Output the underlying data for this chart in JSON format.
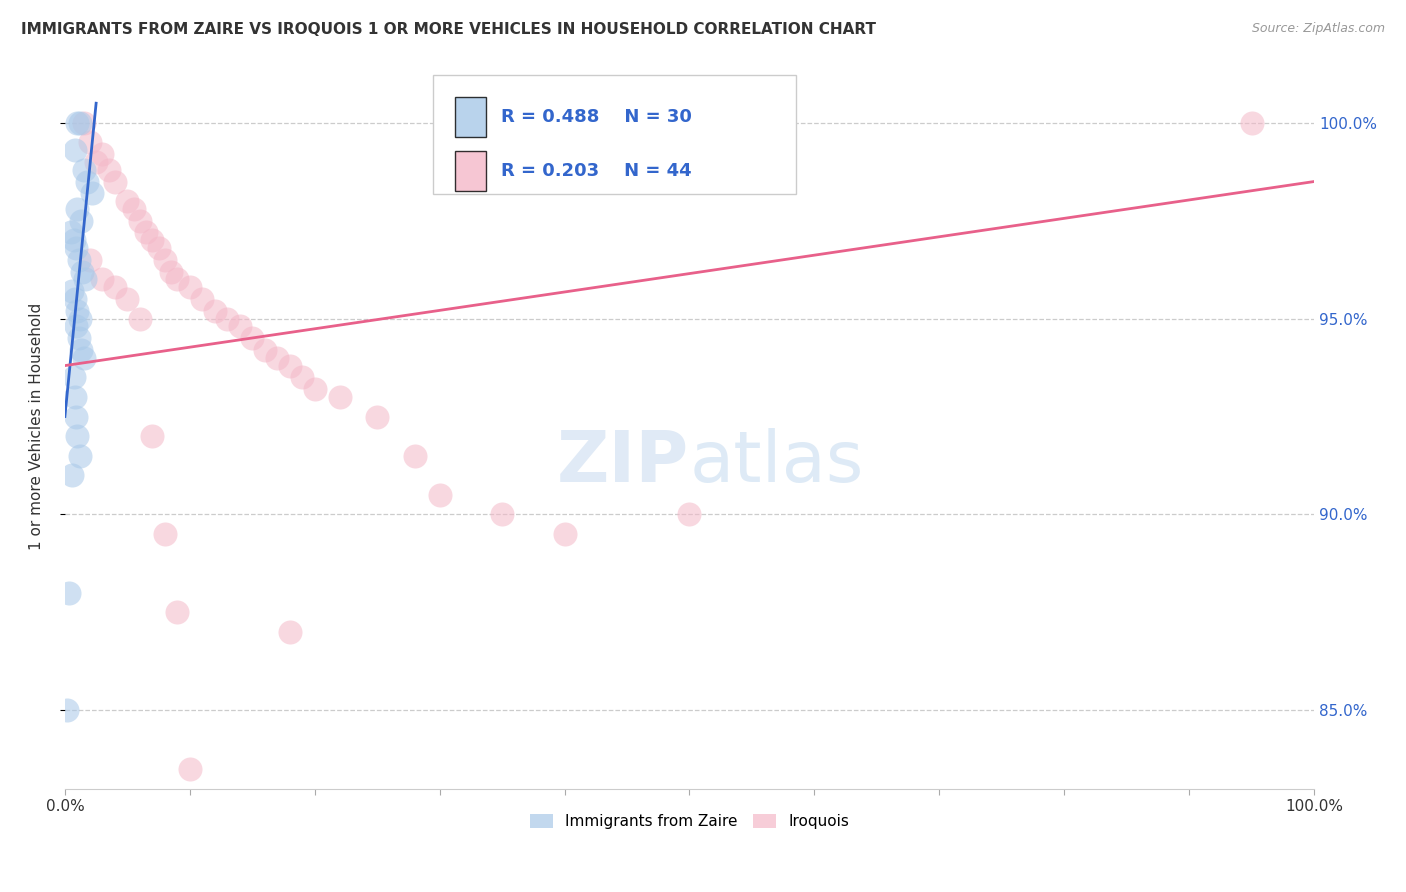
{
  "title": "IMMIGRANTS FROM ZAIRE VS IROQUOIS 1 OR MORE VEHICLES IN HOUSEHOLD CORRELATION CHART",
  "source": "Source: ZipAtlas.com",
  "ylabel": "1 or more Vehicles in Household",
  "ylabel_ticks": [
    "85.0%",
    "90.0%",
    "95.0%",
    "100.0%"
  ],
  "ylabel_tick_values": [
    85.0,
    90.0,
    95.0,
    100.0
  ],
  "xlim": [
    0.0,
    100.0
  ],
  "ylim": [
    83.0,
    101.5
  ],
  "legend_blue_r": "R = 0.488",
  "legend_blue_n": "N = 30",
  "legend_pink_r": "R = 0.203",
  "legend_pink_n": "N = 44",
  "legend_label_blue": "Immigrants from Zaire",
  "legend_label_pink": "Iroquois",
  "blue_color": "#a8c8e8",
  "pink_color": "#f4b8c8",
  "blue_line_color": "#3366cc",
  "pink_line_color": "#e8608a",
  "blue_scatter_x": [
    1.0,
    1.2,
    0.8,
    1.5,
    1.8,
    2.2,
    1.0,
    1.3,
    0.5,
    0.7,
    0.9,
    1.1,
    1.4,
    1.6,
    0.6,
    0.8,
    1.0,
    1.2,
    0.9,
    1.1,
    1.3,
    1.5,
    0.7,
    0.8,
    0.9,
    1.0,
    1.2,
    0.6,
    0.3,
    0.2
  ],
  "blue_scatter_y": [
    100.0,
    100.0,
    99.3,
    98.8,
    98.5,
    98.2,
    97.8,
    97.5,
    97.2,
    97.0,
    96.8,
    96.5,
    96.2,
    96.0,
    95.7,
    95.5,
    95.2,
    95.0,
    94.8,
    94.5,
    94.2,
    94.0,
    93.5,
    93.0,
    92.5,
    92.0,
    91.5,
    91.0,
    88.0,
    85.0
  ],
  "pink_scatter_x": [
    1.5,
    2.0,
    2.5,
    3.0,
    3.5,
    4.0,
    5.0,
    5.5,
    6.0,
    6.5,
    7.0,
    7.5,
    8.0,
    8.5,
    9.0,
    10.0,
    11.0,
    12.0,
    13.0,
    14.0,
    15.0,
    16.0,
    17.0,
    18.0,
    19.0,
    20.0,
    22.0,
    25.0,
    28.0,
    30.0,
    35.0,
    40.0,
    2.0,
    3.0,
    4.0,
    5.0,
    6.0,
    7.0,
    95.0,
    8.0,
    50.0,
    9.0,
    18.0,
    10.0
  ],
  "pink_scatter_y": [
    100.0,
    99.5,
    99.0,
    99.2,
    98.8,
    98.5,
    98.0,
    97.8,
    97.5,
    97.2,
    97.0,
    96.8,
    96.5,
    96.2,
    96.0,
    95.8,
    95.5,
    95.2,
    95.0,
    94.8,
    94.5,
    94.2,
    94.0,
    93.8,
    93.5,
    93.2,
    93.0,
    92.5,
    91.5,
    90.5,
    90.0,
    89.5,
    96.5,
    96.0,
    95.8,
    95.5,
    95.0,
    92.0,
    100.0,
    89.5,
    90.0,
    87.5,
    87.0,
    83.5
  ],
  "blue_line_x": [
    0.0,
    2.5
  ],
  "blue_line_y": [
    92.5,
    100.5
  ],
  "pink_line_x": [
    0.0,
    100.0
  ],
  "pink_line_y": [
    93.8,
    98.5
  ],
  "gridline_color": "#cccccc",
  "background_color": "#ffffff",
  "text_color_blue": "#3366cc",
  "text_color_dark": "#333333",
  "legend_text_color": "#3366cc"
}
